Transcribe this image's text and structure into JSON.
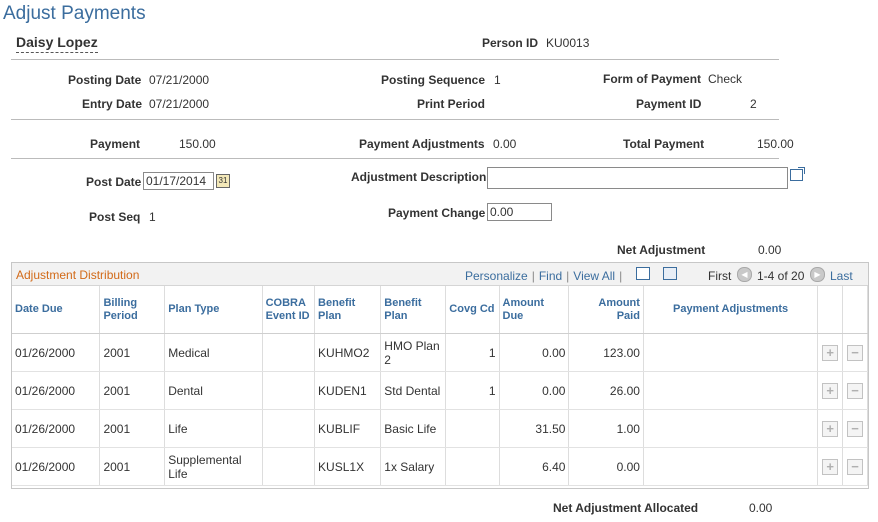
{
  "page": {
    "title": "Adjust Payments"
  },
  "person": {
    "name": "Daisy Lopez",
    "id_label": "Person ID",
    "id_value": "KU0013"
  },
  "summary": {
    "posting_date_label": "Posting Date",
    "posting_date": "07/21/2000",
    "entry_date_label": "Entry Date",
    "entry_date": "07/21/2000",
    "posting_seq_label": "Posting Sequence",
    "posting_seq": "1",
    "print_period_label": "Print Period",
    "form_of_payment_label": "Form of Payment",
    "form_of_payment": "Check",
    "payment_id_label": "Payment ID",
    "payment_id": "2"
  },
  "totals": {
    "payment_label": "Payment",
    "payment": "150.00",
    "payment_adj_label": "Payment Adjustments",
    "payment_adj": "0.00",
    "total_payment_label": "Total Payment",
    "total_payment": "150.00"
  },
  "form": {
    "post_date_label": "Post Date",
    "post_date": "01/17/2014",
    "post_seq_label": "Post Seq",
    "post_seq": "1",
    "adj_desc_label": "Adjustment Description",
    "adj_desc": "",
    "payment_change_label": "Payment Change",
    "payment_change": "0.00",
    "net_adj_label": "Net Adjustment",
    "net_adj": "0.00"
  },
  "grid": {
    "title": "Adjustment Distribution",
    "personalize": "Personalize",
    "find": "Find",
    "view_all": "View All",
    "first": "First",
    "range": "1-4 of 20",
    "last": "Last",
    "headers": [
      "Date Due",
      "Billing Period",
      "Plan Type",
      "COBRA Event ID",
      "Benefit Plan",
      "Benefit Plan",
      "Covg Cd",
      "Amount Due",
      "Amount Paid",
      "Payment Adjustments"
    ],
    "rows": [
      {
        "date_due": "01/26/2000",
        "billing_period": "2001",
        "plan_type": "Medical",
        "cobra": "",
        "benefit_plan": "KUHMO2",
        "benefit_plan_desc": "HMO Plan 2",
        "covg_cd": "1",
        "amount_due": "0.00",
        "amount_paid": "123.00",
        "payment_adj": ""
      },
      {
        "date_due": "01/26/2000",
        "billing_period": "2001",
        "plan_type": "Dental",
        "cobra": "",
        "benefit_plan": "KUDEN1",
        "benefit_plan_desc": "Std Dental",
        "covg_cd": "1",
        "amount_due": "0.00",
        "amount_paid": "26.00",
        "payment_adj": ""
      },
      {
        "date_due": "01/26/2000",
        "billing_period": "2001",
        "plan_type": "Life",
        "cobra": "",
        "benefit_plan": "KUBLIF",
        "benefit_plan_desc": "Basic Life",
        "covg_cd": "",
        "amount_due": "31.50",
        "amount_paid": "1.00",
        "payment_adj": ""
      },
      {
        "date_due": "01/26/2000",
        "billing_period": "2001",
        "plan_type": "Supplemental Life",
        "cobra": "",
        "benefit_plan": "KUSL1X",
        "benefit_plan_desc": "1x Salary",
        "covg_cd": "",
        "amount_due": "6.40",
        "amount_paid": "0.00",
        "payment_adj": ""
      }
    ]
  },
  "footer": {
    "net_adj_alloc_label": "Net Adjustment Allocated",
    "net_adj_alloc": "0.00"
  },
  "icons": {
    "calendar": "calendar-icon",
    "expand": "expand-field-icon",
    "add": "add-row-icon",
    "delete": "delete-row-icon"
  },
  "colors": {
    "title": "#3b6d9e",
    "grid_title": "#d26a18",
    "link": "#3b6d9e"
  }
}
